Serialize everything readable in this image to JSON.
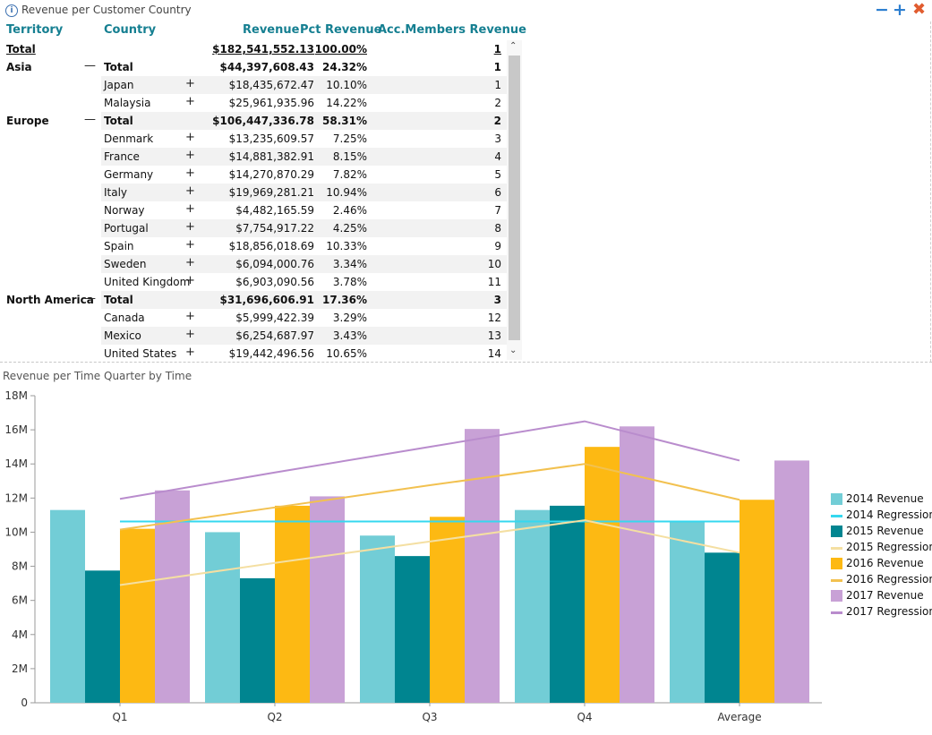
{
  "panel": {
    "title": "Revenue per Customer Country",
    "minimize_icon": "minus-icon",
    "add_icon": "plus-icon",
    "close_icon": "close-icon"
  },
  "grid": {
    "columns": [
      "Territory",
      "Country",
      "Revenue",
      "Pct Revenue",
      "Acc.Members Revenue"
    ],
    "total_row": {
      "territory": "Total",
      "revenue": "$182,541,552.13",
      "pct": "100.00%",
      "acc": "1"
    },
    "rows": [
      {
        "territory": "Asia",
        "expander": "—",
        "country": "Total",
        "revenue": "$44,397,608.43",
        "pct": "24.32%",
        "acc": "1",
        "is_total": true
      },
      {
        "territory": "",
        "expander": "+",
        "country": "Japan",
        "revenue": "$18,435,672.47",
        "pct": "10.10%",
        "acc": "1",
        "is_total": false
      },
      {
        "territory": "",
        "expander": "+",
        "country": "Malaysia",
        "revenue": "$25,961,935.96",
        "pct": "14.22%",
        "acc": "2",
        "is_total": false
      },
      {
        "territory": "Europe",
        "expander": "—",
        "country": "Total",
        "revenue": "$106,447,336.78",
        "pct": "58.31%",
        "acc": "2",
        "is_total": true
      },
      {
        "territory": "",
        "expander": "+",
        "country": "Denmark",
        "revenue": "$13,235,609.57",
        "pct": "7.25%",
        "acc": "3",
        "is_total": false
      },
      {
        "territory": "",
        "expander": "+",
        "country": "France",
        "revenue": "$14,881,382.91",
        "pct": "8.15%",
        "acc": "4",
        "is_total": false
      },
      {
        "territory": "",
        "expander": "+",
        "country": "Germany",
        "revenue": "$14,270,870.29",
        "pct": "7.82%",
        "acc": "5",
        "is_total": false
      },
      {
        "territory": "",
        "expander": "+",
        "country": "Italy",
        "revenue": "$19,969,281.21",
        "pct": "10.94%",
        "acc": "6",
        "is_total": false
      },
      {
        "territory": "",
        "expander": "+",
        "country": "Norway",
        "revenue": "$4,482,165.59",
        "pct": "2.46%",
        "acc": "7",
        "is_total": false
      },
      {
        "territory": "",
        "expander": "+",
        "country": "Portugal",
        "revenue": "$7,754,917.22",
        "pct": "4.25%",
        "acc": "8",
        "is_total": false
      },
      {
        "territory": "",
        "expander": "+",
        "country": "Spain",
        "revenue": "$18,856,018.69",
        "pct": "10.33%",
        "acc": "9",
        "is_total": false
      },
      {
        "territory": "",
        "expander": "+",
        "country": "Sweden",
        "revenue": "$6,094,000.76",
        "pct": "3.34%",
        "acc": "10",
        "is_total": false
      },
      {
        "territory": "",
        "expander": "+",
        "country": "United Kingdom",
        "revenue": "$6,903,090.56",
        "pct": "3.78%",
        "acc": "11",
        "is_total": false
      },
      {
        "territory": "North America",
        "expander": "—",
        "country": "Total",
        "revenue": "$31,696,606.91",
        "pct": "17.36%",
        "acc": "3",
        "is_total": true
      },
      {
        "territory": "",
        "expander": "+",
        "country": "Canada",
        "revenue": "$5,999,422.39",
        "pct": "3.29%",
        "acc": "12",
        "is_total": false
      },
      {
        "territory": "",
        "expander": "+",
        "country": "Mexico",
        "revenue": "$6,254,687.97",
        "pct": "3.43%",
        "acc": "13",
        "is_total": false
      },
      {
        "territory": "",
        "expander": "+",
        "country": "United States",
        "revenue": "$19,442,496.56",
        "pct": "10.65%",
        "acc": "14",
        "is_total": false
      }
    ]
  },
  "chart_title": "Revenue per Time Quarter by Time",
  "colors": {
    "header_text": "#157f91",
    "s2014": "#72cdd6",
    "s2014_reg": "#35d8ef",
    "s2015": "#008590",
    "s2015_reg": "#f4dfa2",
    "s2016": "#fdb913",
    "s2016_reg": "#f2c150",
    "s2017": "#c8a1d6",
    "s2017_reg": "#b98ccd",
    "close": "#e15c2f",
    "window_button": "#2d7fd0"
  },
  "chart_data": {
    "type": "bar",
    "categories": [
      "Q1",
      "Q2",
      "Q3",
      "Q4",
      "Average"
    ],
    "ylim": [
      0,
      18000000
    ],
    "yticks": [
      "0",
      "2M",
      "4M",
      "6M",
      "8M",
      "10M",
      "12M",
      "14M",
      "16M",
      "18M"
    ],
    "series": [
      {
        "name": "2014 Revenue",
        "values": [
          11300000,
          10000000,
          9800000,
          11300000,
          10600000
        ]
      },
      {
        "name": "2015 Revenue",
        "values": [
          7750000,
          7300000,
          8600000,
          11550000,
          8800000
        ]
      },
      {
        "name": "2016 Revenue",
        "values": [
          10200000,
          11550000,
          10900000,
          15000000,
          11900000
        ]
      },
      {
        "name": "2017 Revenue",
        "values": [
          12450000,
          12100000,
          16050000,
          16200000,
          14200000
        ]
      }
    ],
    "regressions": [
      {
        "name": "2014 Regression",
        "values": [
          10630000,
          10630000,
          10630000,
          10630000,
          10630000
        ]
      },
      {
        "name": "2015 Regression",
        "values": [
          6900000,
          8200000,
          9450000,
          10700000,
          8800000
        ]
      },
      {
        "name": "2016 Regression",
        "values": [
          10150000,
          11450000,
          12750000,
          14000000,
          11900000
        ]
      },
      {
        "name": "2017 Regression",
        "values": [
          11950000,
          13500000,
          15000000,
          16500000,
          14200000
        ]
      }
    ],
    "legend": [
      "2014 Revenue",
      "2014 Regression",
      "2015 Revenue",
      "2015 Regression",
      "2016 Revenue",
      "2016 Regression",
      "2017 Revenue",
      "2017 Regression"
    ],
    "legend_position": "right"
  }
}
